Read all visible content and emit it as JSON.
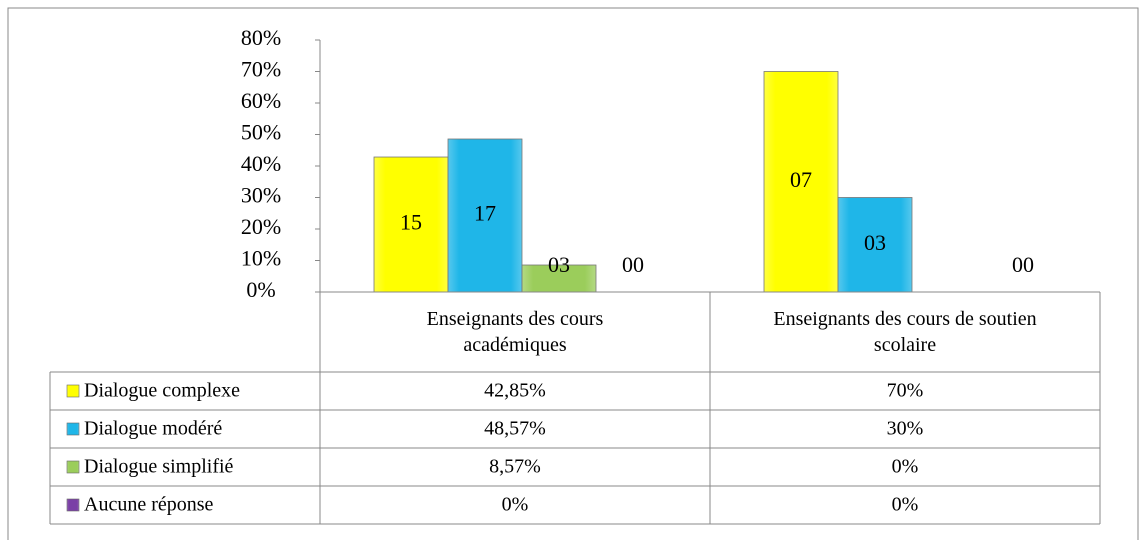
{
  "chart_data": {
    "type": "bar",
    "categories": [
      "Enseignants des cours académiques",
      "Enseignants des cours de soutien scolaire"
    ],
    "series": [
      {
        "name": "Dialogue complexe",
        "color": "#ffff00",
        "values": [
          42.85,
          70
        ],
        "value_labels": [
          "42,85%",
          "70%"
        ],
        "labels": [
          "15",
          "07"
        ]
      },
      {
        "name": "Dialogue modéré",
        "color": "#1fb6e8",
        "values": [
          48.57,
          30
        ],
        "value_labels": [
          "48,57%",
          "30%"
        ],
        "labels": [
          "17",
          "03"
        ]
      },
      {
        "name": "Dialogue simplifié",
        "color": "#9bcd5b",
        "values": [
          8.57,
          0
        ],
        "value_labels": [
          "8,57%",
          "0%"
        ],
        "labels": [
          "03",
          null
        ]
      },
      {
        "name": "Aucune réponse",
        "color": "#7a3fa6",
        "values": [
          0,
          0
        ],
        "value_labels": [
          "0%",
          "0%"
        ],
        "labels": [
          "00",
          "00"
        ]
      }
    ],
    "ylim": [
      0,
      80
    ],
    "yticks": [
      {
        "value": 0,
        "label": "0%"
      },
      {
        "value": 10,
        "label": "10%"
      },
      {
        "value": 20,
        "label": "20%"
      },
      {
        "value": 30,
        "label": "30%"
      },
      {
        "value": 40,
        "label": "40%"
      },
      {
        "value": 50,
        "label": "50%"
      },
      {
        "value": 60,
        "label": "60%"
      },
      {
        "value": 70,
        "label": "70%"
      },
      {
        "value": 80,
        "label": "80%"
      }
    ],
    "grid": false,
    "legend": "table"
  }
}
